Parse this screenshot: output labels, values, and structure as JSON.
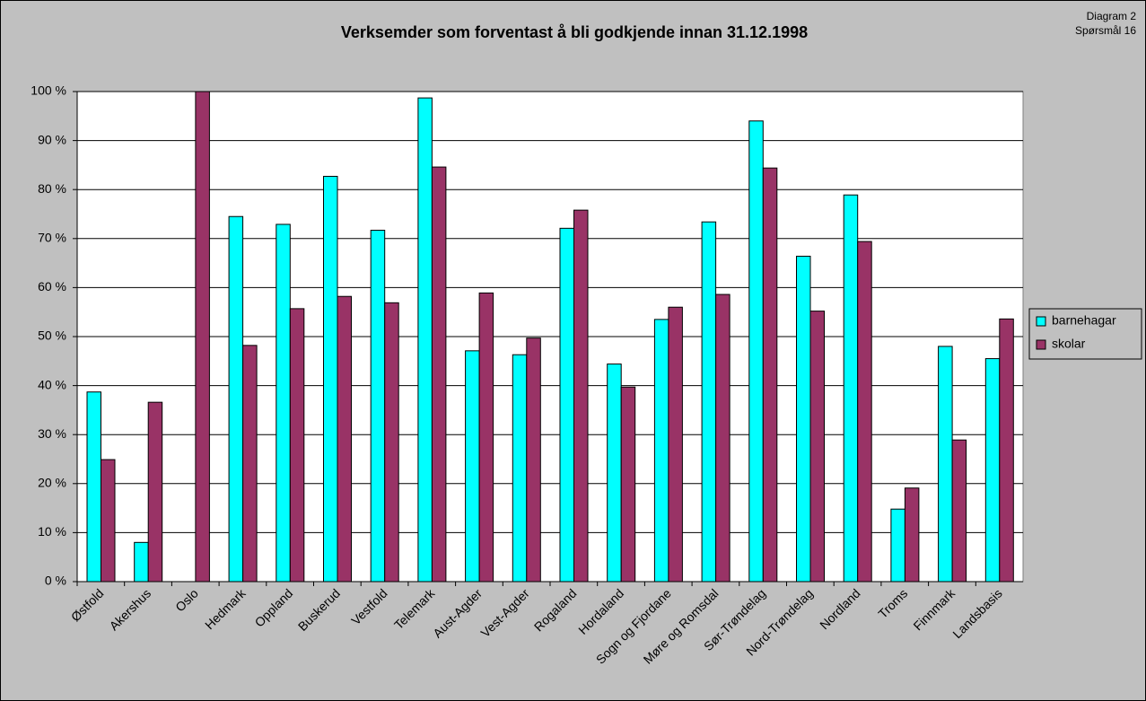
{
  "chart_data": {
    "type": "bar",
    "title": "Verksemder som forventast å bli godkjende innan 31.12.1998",
    "subtitle": [
      "Diagram 2",
      "Spørsmål 16"
    ],
    "categories": [
      "Østfold",
      "Akershus",
      "Oslo",
      "Hedmark",
      "Oppland",
      "Buskerud",
      "Vestfold",
      "Telemark",
      "Aust-Agder",
      "Vest-Agder",
      "Rogaland",
      "Hordaland",
      "Sogn og Fjordane",
      "Møre og Romsdal",
      "Sør-Trøndelag",
      "Nord-Trøndelag",
      "Nordland",
      "Troms",
      "Finnmark",
      "Landsbasis"
    ],
    "series": [
      {
        "name": "barnehagar",
        "color": "#00ffff",
        "values": [
          38.7,
          8,
          0,
          74.5,
          72.9,
          82.7,
          71.7,
          98.7,
          47.1,
          46.3,
          72.1,
          44.4,
          53.5,
          73.4,
          94,
          66.4,
          78.9,
          14.8,
          48,
          45.5
        ]
      },
      {
        "name": "skolar",
        "color": "#993366",
        "values": [
          24.9,
          36.6,
          100,
          48.2,
          55.7,
          58.2,
          56.9,
          84.6,
          58.9,
          49.7,
          75.8,
          39.7,
          56,
          58.6,
          84.4,
          55.2,
          69.4,
          19.1,
          28.9,
          53.6
        ]
      }
    ],
    "ylim": [
      0,
      100
    ],
    "yticks": [
      {
        "value": 0,
        "label": "0 %"
      },
      {
        "value": 10,
        "label": "10 %"
      },
      {
        "value": 20,
        "label": "20 %"
      },
      {
        "value": 30,
        "label": "30 %"
      },
      {
        "value": 40,
        "label": "40 %"
      },
      {
        "value": 50,
        "label": "50 %"
      },
      {
        "value": 60,
        "label": "60 %"
      },
      {
        "value": 70,
        "label": "70 %"
      },
      {
        "value": 80,
        "label": "80 %"
      },
      {
        "value": 90,
        "label": "90 %"
      },
      {
        "value": 100,
        "label": "100 %"
      }
    ],
    "grid": true,
    "legend": "right"
  }
}
